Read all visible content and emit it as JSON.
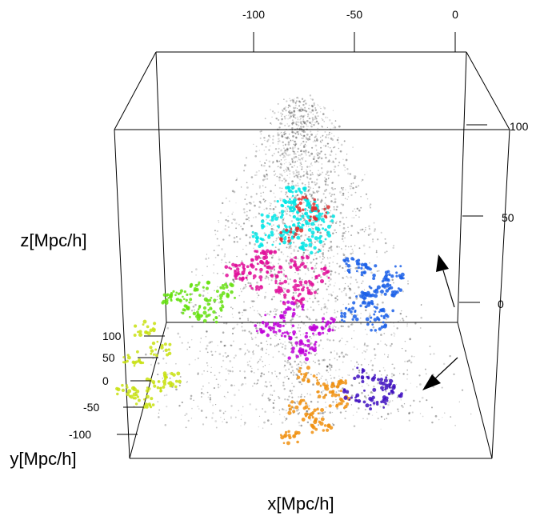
{
  "chart_data": {
    "type": "scatter",
    "title": "",
    "xlabel": "x[Mpc/h]",
    "ylabel": "y[Mpc/h]",
    "zlabel": "z[Mpc/h]",
    "x_ticks": [
      "-100",
      "-50",
      "0"
    ],
    "y_ticks": [
      "100",
      "50",
      "0",
      "-50",
      "-100"
    ],
    "z_ticks": [
      "100",
      "50",
      "0"
    ],
    "grid": false,
    "box": true,
    "background_points_color": "#000000",
    "series": [
      {
        "color": "#00e5e5",
        "points": [
          [
            -72,
            -10,
            102
          ],
          [
            -66,
            -5,
            98
          ],
          [
            -58,
            0,
            104
          ],
          [
            -80,
            12,
            94
          ],
          [
            -70,
            22,
            88
          ],
          [
            -62,
            8,
            92
          ],
          [
            -52,
            -4,
            96
          ],
          [
            -76,
            30,
            84
          ],
          [
            -60,
            26,
            78
          ],
          [
            -85,
            6,
            80
          ],
          [
            -67,
            -14,
            110
          ],
          [
            -55,
            18,
            86
          ]
        ]
      },
      {
        "color": "#e0109a",
        "points": [
          [
            -100,
            20,
            60
          ],
          [
            -88,
            10,
            64
          ],
          [
            -78,
            2,
            58
          ],
          [
            -66,
            -6,
            62
          ],
          [
            -56,
            14,
            56
          ],
          [
            -92,
            30,
            52
          ],
          [
            -74,
            26,
            50
          ],
          [
            -62,
            32,
            48
          ],
          [
            -84,
            -8,
            66
          ],
          [
            -70,
            40,
            44
          ],
          [
            -96,
            -2,
            56
          ]
        ]
      },
      {
        "color": "#1a5fe8",
        "points": [
          [
            -38,
            10,
            62
          ],
          [
            -30,
            -6,
            58
          ],
          [
            -24,
            16,
            50
          ],
          [
            -18,
            4,
            44
          ],
          [
            -34,
            28,
            40
          ],
          [
            -28,
            -14,
            36
          ],
          [
            -22,
            22,
            30
          ],
          [
            -40,
            -2,
            26
          ],
          [
            -26,
            8,
            20
          ],
          [
            -16,
            -10,
            54
          ]
        ]
      },
      {
        "color": "#66e010",
        "points": [
          [
            -130,
            10,
            40
          ],
          [
            -120,
            0,
            44
          ],
          [
            -112,
            18,
            36
          ],
          [
            -124,
            28,
            32
          ],
          [
            -106,
            -6,
            42
          ],
          [
            -134,
            -8,
            38
          ],
          [
            -116,
            34,
            30
          ]
        ]
      },
      {
        "color": "#c000d8",
        "points": [
          [
            -80,
            10,
            24
          ],
          [
            -70,
            0,
            30
          ],
          [
            -60,
            18,
            16
          ],
          [
            -74,
            -12,
            12
          ],
          [
            -64,
            28,
            8
          ],
          [
            -54,
            6,
            20
          ],
          [
            -86,
            20,
            18
          ],
          [
            -68,
            34,
            4
          ]
        ]
      },
      {
        "color": "#c8e010",
        "points": [
          [
            -150,
            30,
            20
          ],
          [
            -142,
            46,
            8
          ],
          [
            -156,
            10,
            -4
          ],
          [
            -146,
            56,
            -16
          ],
          [
            -160,
            20,
            -26
          ],
          [
            -138,
            64,
            -12
          ],
          [
            -152,
            40,
            -30
          ]
        ]
      },
      {
        "color": "#f09010",
        "points": [
          [
            -64,
            50,
            -10
          ],
          [
            -54,
            60,
            -20
          ],
          [
            -70,
            76,
            -30
          ],
          [
            -58,
            88,
            -42
          ],
          [
            -48,
            72,
            -26
          ],
          [
            -76,
            94,
            -48
          ],
          [
            -62,
            64,
            -36
          ],
          [
            -50,
            84,
            -14
          ]
        ]
      },
      {
        "color": "#4010c0",
        "points": [
          [
            -34,
            50,
            -10
          ],
          [
            -24,
            58,
            -16
          ],
          [
            -40,
            68,
            -22
          ],
          [
            -28,
            74,
            -28
          ],
          [
            -20,
            64,
            -20
          ]
        ]
      },
      {
        "color": "#e03030",
        "points": [
          [
            -62,
            -20,
            102
          ],
          [
            -54,
            -12,
            96
          ],
          [
            -70,
            0,
            82
          ]
        ]
      }
    ]
  }
}
